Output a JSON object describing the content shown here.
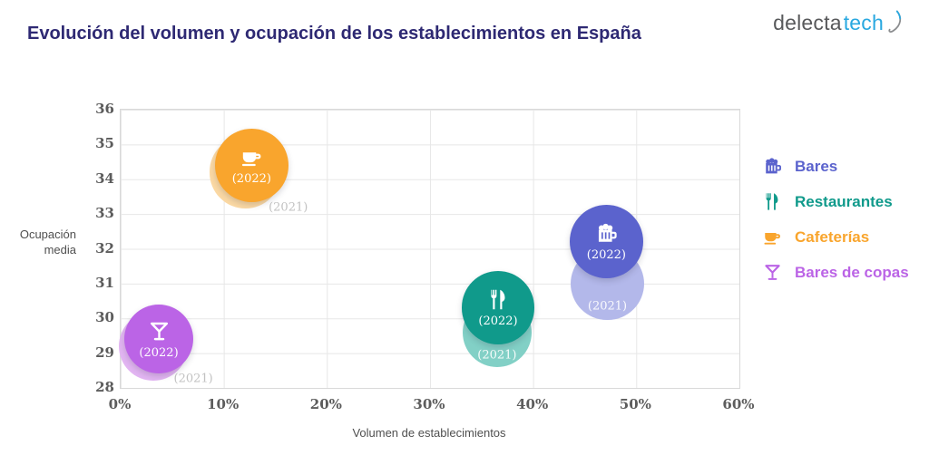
{
  "header": {
    "title": "Evolución del volumen y ocupación de los establecimientos en España",
    "logo": {
      "gray": "delecta",
      "blue": "tech"
    }
  },
  "chart_data": {
    "type": "bubble",
    "title": "Evolución del volumen y ocupación de los establecimientos en España",
    "xlabel": "Volumen de establecimientos",
    "ylabel": "Ocupación media",
    "ylabel_lines": [
      "Ocupación",
      "media"
    ],
    "xlim": [
      0,
      60
    ],
    "ylim": [
      28,
      36
    ],
    "grid": true,
    "legend_position": "right",
    "xticks": [
      {
        "value": 0,
        "label": "0%"
      },
      {
        "value": 10,
        "label": "10%"
      },
      {
        "value": 20,
        "label": "20%"
      },
      {
        "value": 30,
        "label": "30%"
      },
      {
        "value": 40,
        "label": "40%"
      },
      {
        "value": 50,
        "label": "50%"
      },
      {
        "value": 60,
        "label": "60%"
      }
    ],
    "yticks": [
      {
        "value": 36,
        "label": "36"
      },
      {
        "value": 35,
        "label": "35"
      },
      {
        "value": 34,
        "label": "34"
      },
      {
        "value": 33,
        "label": "33"
      },
      {
        "value": 32,
        "label": "32"
      },
      {
        "value": 31,
        "label": "31"
      },
      {
        "value": 30,
        "label": "30"
      },
      {
        "value": 29,
        "label": "29"
      },
      {
        "value": 28,
        "label": "28"
      }
    ],
    "series": [
      {
        "name": "Bares",
        "icon": "beer-mug-icon",
        "color": "#5B63CD",
        "color_2021": "#B3B8EA",
        "label_2021_placement": "inside",
        "points": [
          {
            "year": "2022",
            "x": 47.1,
            "y": 32.2,
            "r_pct": 3.55,
            "label": "(2022)"
          },
          {
            "year": "2021",
            "x": 47.2,
            "y": 31.0,
            "r_pct": 3.55,
            "label": "(2021)"
          }
        ]
      },
      {
        "name": "Restaurantes",
        "icon": "utensils-icon",
        "color": "#109A8B",
        "color_2021": "#82D0C6",
        "label_2021_placement": "inside",
        "points": [
          {
            "year": "2022",
            "x": 36.6,
            "y": 30.3,
            "r_pct": 3.55,
            "label": "(2022)"
          },
          {
            "year": "2021",
            "x": 36.5,
            "y": 29.6,
            "r_pct": 3.35,
            "label": "(2021)"
          }
        ]
      },
      {
        "name": "Cafeterías",
        "icon": "coffee-cup-icon",
        "color": "#F9A52D",
        "color_2021": "#FBD9A4",
        "label_2021_placement": "outside",
        "points": [
          {
            "year": "2022",
            "x": 12.7,
            "y": 34.4,
            "r_pct": 3.55,
            "label": "(2022)"
          },
          {
            "year": "2021",
            "x": 12.1,
            "y": 34.2,
            "r_pct": 3.5,
            "label": "(2021)"
          }
        ]
      },
      {
        "name": "Bares de copas",
        "icon": "martini-glass-icon",
        "color": "#BB64E6",
        "color_2021": "#E2B5F2",
        "label_2021_placement": "outside",
        "points": [
          {
            "year": "2022",
            "x": 3.7,
            "y": 29.4,
            "r_pct": 3.35,
            "label": "(2022)"
          },
          {
            "year": "2021",
            "x": 3.2,
            "y": 29.2,
            "r_pct": 3.35,
            "label": "(2021)"
          }
        ]
      }
    ]
  }
}
